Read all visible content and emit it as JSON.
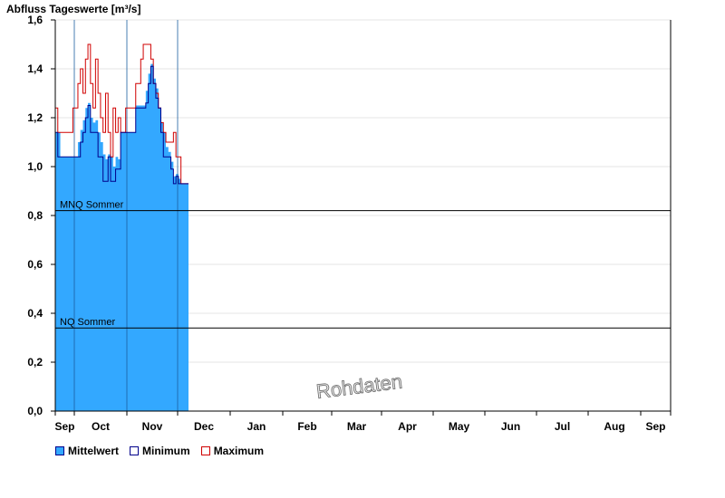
{
  "chart_data": {
    "type": "area",
    "title": "Abfluss Tageswerte [m³/s]",
    "ylim": [
      0,
      1.6
    ],
    "yticks": [
      "0,0",
      "0,2",
      "0,4",
      "0,6",
      "0,8",
      "1,0",
      "1,2",
      "1,4",
      "1,6"
    ],
    "ytick_values": [
      0,
      0.2,
      0.4,
      0.6,
      0.8,
      1.0,
      1.2,
      1.4,
      1.6
    ],
    "months": [
      "Sep",
      "Oct",
      "Nov",
      "Dec",
      "Jan",
      "Feb",
      "Mar",
      "Apr",
      "May",
      "Jun",
      "Jul",
      "Aug",
      "Sep"
    ],
    "grid": true,
    "legend_position": "bottom-left",
    "reference_lines": [
      {
        "label": "MNQ Sommer",
        "value": 0.82
      },
      {
        "label": "NQ Sommer",
        "value": 0.34
      }
    ],
    "watermark": "Rohdaten",
    "series": [
      {
        "name": "Mittelwert",
        "color": "#33a8ff",
        "values": [
          1.14,
          1.14,
          1.04,
          1.04,
          1.04,
          1.04,
          1.04,
          1.04,
          1.04,
          1.1,
          1.15,
          1.19,
          1.24,
          1.26,
          1.2,
          1.18,
          1.19,
          1.14,
          1.1,
          1.05,
          1.03,
          1.05,
          1.04,
          1.0,
          1.04,
          1.03,
          1.14,
          1.14,
          1.14,
          1.14,
          1.14,
          1.14,
          1.25,
          1.25,
          1.25,
          1.25,
          1.31,
          1.38,
          1.42,
          1.36,
          1.32,
          1.24,
          1.18,
          1.14,
          1.08,
          1.06,
          1.02,
          0.96,
          0.97,
          0.95,
          0.93,
          0.93,
          0.93
        ]
      },
      {
        "name": "Minimum",
        "color": "#00008b",
        "values": [
          1.14,
          1.04,
          1.04,
          1.04,
          1.04,
          1.04,
          1.04,
          1.04,
          1.04,
          1.04,
          1.1,
          1.14,
          1.2,
          1.25,
          1.14,
          1.14,
          1.14,
          1.04,
          1.04,
          0.94,
          0.94,
          1.04,
          0.94,
          0.94,
          0.99,
          0.99,
          1.14,
          1.14,
          1.14,
          1.14,
          1.14,
          1.14,
          1.24,
          1.24,
          1.24,
          1.24,
          1.26,
          1.34,
          1.41,
          1.34,
          1.28,
          1.24,
          1.14,
          1.04,
          1.04,
          1.04,
          0.99,
          0.93,
          0.96,
          0.93,
          0.93,
          0.93,
          0.93
        ]
      },
      {
        "name": "Maximum",
        "color": "#d00000",
        "values": [
          1.24,
          1.14,
          1.14,
          1.14,
          1.14,
          1.14,
          1.14,
          1.24,
          1.24,
          1.34,
          1.4,
          1.3,
          1.44,
          1.5,
          1.34,
          1.24,
          1.44,
          1.3,
          1.2,
          1.14,
          1.3,
          1.14,
          1.04,
          1.24,
          1.14,
          1.2,
          1.14,
          1.14,
          1.24,
          1.24,
          1.24,
          1.24,
          1.34,
          1.34,
          1.44,
          1.5,
          1.5,
          1.5,
          1.44,
          1.34,
          1.3,
          1.24,
          1.18,
          1.14,
          1.1,
          1.1,
          1.1,
          1.14,
          1.04,
          1.04,
          0.93,
          0.93,
          0.93
        ]
      }
    ]
  }
}
